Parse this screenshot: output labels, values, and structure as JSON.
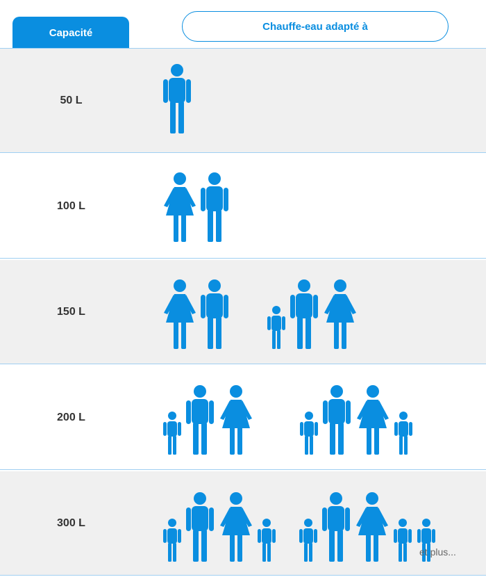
{
  "header": {
    "capacity_tab": "Capacité",
    "suitable_tab": "Chauffe-eau adapté à"
  },
  "colors": {
    "accent": "#0a8ee0",
    "row_gray": "#f0f0f0"
  },
  "rows": [
    {
      "capacity": "50 L",
      "groups": [
        [
          "man"
        ]
      ]
    },
    {
      "capacity": "100 L",
      "groups": [
        [
          "woman",
          "man"
        ]
      ]
    },
    {
      "capacity": "150 L",
      "groups": [
        [
          "woman",
          "man"
        ],
        [
          "child",
          "man",
          "woman"
        ]
      ]
    },
    {
      "capacity": "200 L",
      "groups": [
        [
          "child",
          "man",
          "woman"
        ],
        [
          "child",
          "man",
          "woman",
          "child"
        ]
      ]
    },
    {
      "capacity": "300 L",
      "groups": [
        [
          "child",
          "man",
          "woman",
          "child"
        ],
        [
          "child",
          "man",
          "woman",
          "child",
          "child"
        ]
      ],
      "suffix": "et plus..."
    }
  ]
}
